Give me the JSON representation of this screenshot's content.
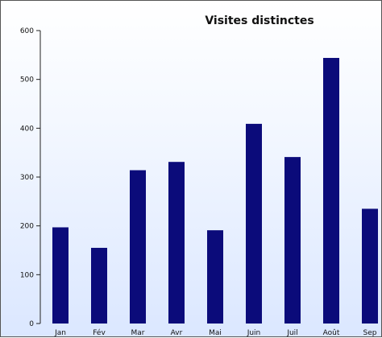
{
  "chart_data": {
    "type": "bar",
    "title": "Visites distinctes",
    "categories": [
      "Jan",
      "Fév",
      "Mar",
      "Avr",
      "Mai",
      "Juin",
      "Juil",
      "Août",
      "Sep"
    ],
    "values": [
      197,
      155,
      314,
      331,
      191,
      409,
      341,
      544,
      235
    ],
    "xlabel": "",
    "ylabel": "",
    "ylim": [
      0,
      600
    ],
    "yticks": [
      "0",
      "100",
      "200",
      "300",
      "400",
      "500",
      "600"
    ],
    "grid": false,
    "legend": "none",
    "colors": {
      "bar": "#0b0b7a",
      "axis": "#222222"
    }
  }
}
